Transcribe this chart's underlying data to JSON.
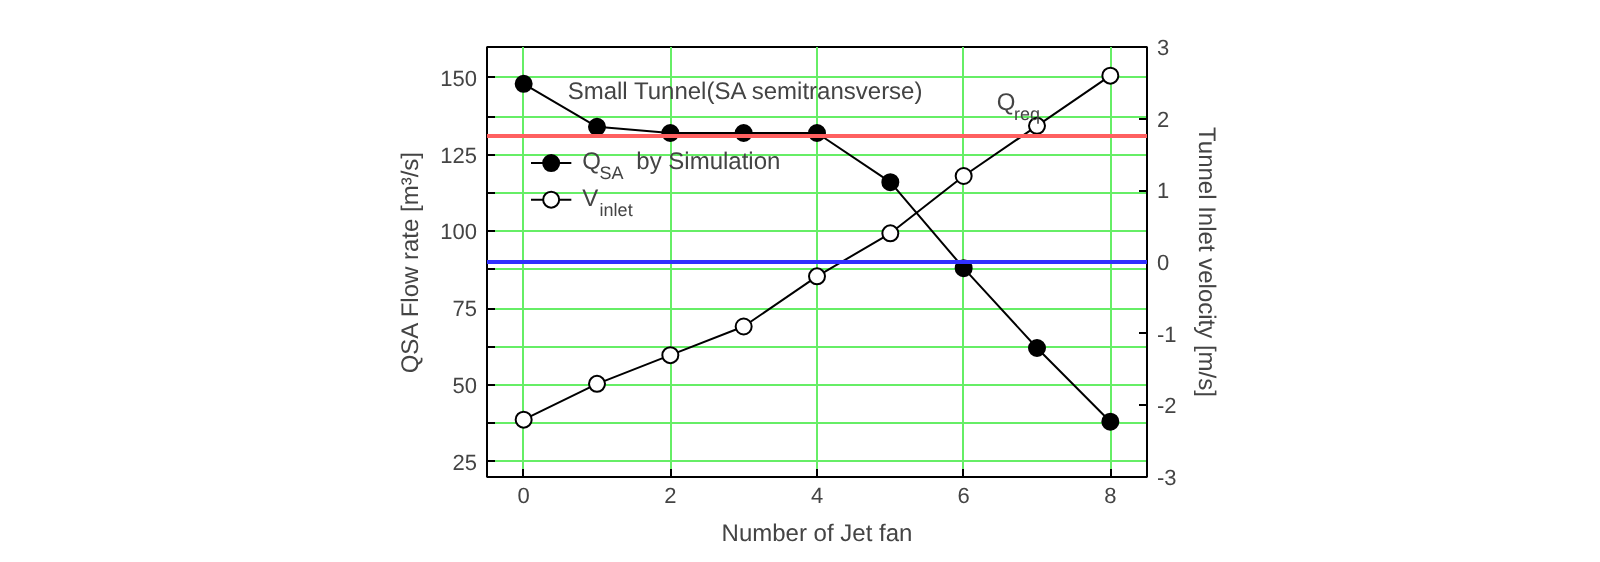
{
  "chart_data": {
    "type": "line",
    "xlabel": "Number of Jet fan",
    "ylabel": "QSA Flow rate [m³/s]",
    "y2label": "Tunnel Inlet velocity [m/s]",
    "annotations": [
      "Small Tunnel(SA semitransverse)"
    ],
    "x": [
      0,
      1,
      2,
      3,
      4,
      5,
      6,
      7,
      8
    ],
    "series": [
      {
        "name": "Q$_{SA}$ by Simulation",
        "color": "#000000",
        "marker": "circle",
        "values": [
          148,
          134,
          132,
          132,
          132,
          116,
          88,
          62,
          38
        ]
      },
      {
        "name": "V$_{inlet}$",
        "color": "#000000",
        "marker": "circle_open",
        "axis": "y2",
        "values": [
          -2.2,
          -1.7,
          -1.3,
          -0.9,
          -0.2,
          0.4,
          1.2,
          1.9,
          2.6
        ]
      }
    ],
    "xlim": [
      -0.5,
      8.5
    ],
    "xticks": [
      0,
      2,
      4,
      6,
      8
    ],
    "ylim": [
      20,
      160
    ],
    "yticks": [
      25,
      {
        "value": 37.5,
        "label": null
      },
      50,
      {
        "value": 62.5,
        "label": null
      },
      75,
      {
        "value": 87.5,
        "label": null
      },
      100,
      {
        "value": 112.5,
        "label": null
      },
      125,
      {
        "value": 137.5,
        "label": null
      },
      150
    ],
    "y2lim": [
      -3,
      3
    ],
    "y2ticks": [
      -3,
      -2,
      -1,
      0,
      1,
      2,
      3
    ],
    "ref_lines": [
      {
        "axis": "y",
        "value": 131,
        "label": "Q$_{req}$",
        "color": "#ff6060"
      },
      {
        "axis": "y2",
        "value": 0,
        "color": "#3030ff"
      }
    ],
    "grid": true,
    "legend": "top left"
  }
}
